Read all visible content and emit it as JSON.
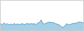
{
  "chart_data": {
    "type": "area",
    "values": [
      55,
      48,
      62,
      50,
      56,
      45,
      53,
      47,
      57,
      49,
      54,
      47,
      53,
      55,
      49,
      55,
      58,
      51,
      57,
      53,
      55,
      49,
      61,
      66,
      88,
      57,
      54,
      61,
      67,
      70,
      64,
      68,
      59,
      54,
      49,
      44,
      30,
      25,
      38,
      55,
      50,
      46,
      54,
      59,
      57,
      64,
      68,
      70,
      66,
      63
    ],
    "color": "#4d9fcc",
    "xlim": [
      0,
      49
    ],
    "ylim": [
      0,
      250
    ],
    "grid": false,
    "tick_labels": false
  }
}
